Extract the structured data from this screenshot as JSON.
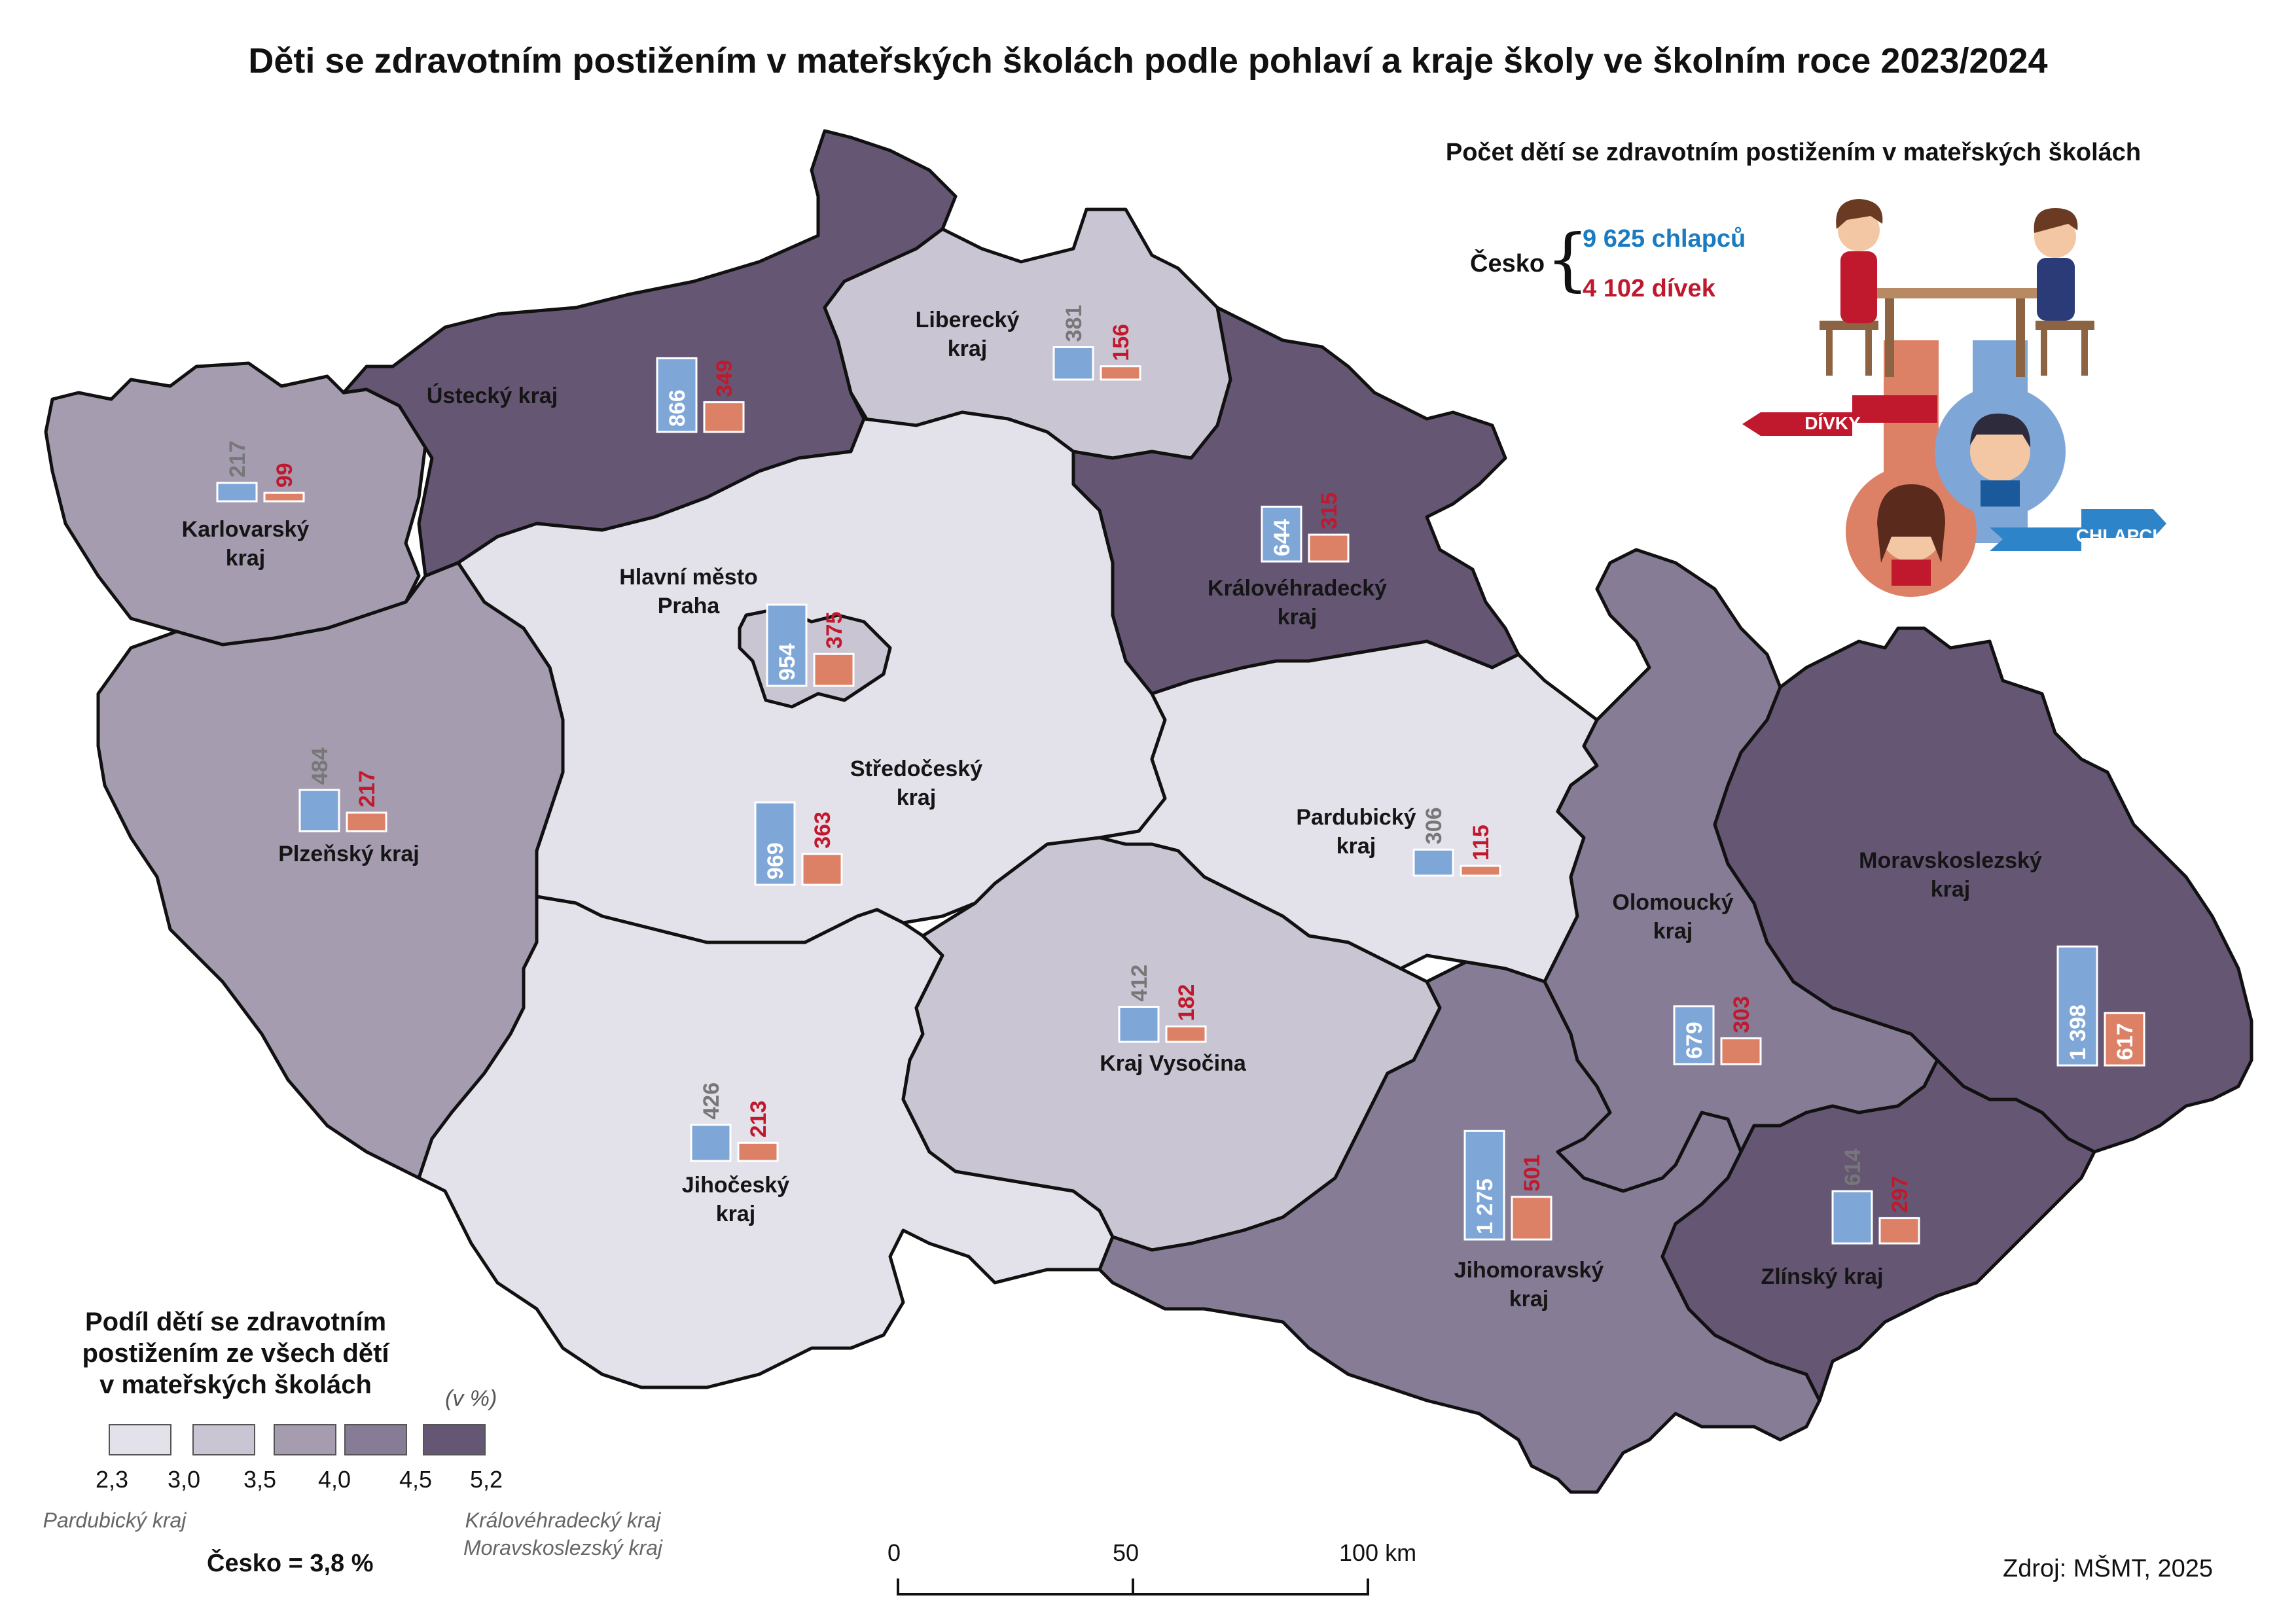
{
  "title": "Děti se zdravotním postižením v mateřských školách podle pohlaví a kraje školy ve školním roce 2023/2024",
  "info": {
    "title": "Počet dětí se zdravotním postižením v mateřských školách",
    "country": "Česko",
    "boys": "9 625 chlapců",
    "girls": "4 102 dívek",
    "girls_ribbon": "DÍVKY",
    "boys_ribbon": "CHLAPCI"
  },
  "colors": {
    "c1": "#e3e1ea",
    "c2": "#cac5d3",
    "c3": "#a59cb0",
    "c4": "#877c96",
    "c5": "#655774",
    "boys_bar": "#7ea7d8",
    "girls_bar": "#dc8066",
    "boys_text": "#1a7bc1",
    "girls_text": "#c0182c"
  },
  "regions": [
    {
      "name_line1": "Karlovarský",
      "name_line2": "kraj",
      "boys": "217",
      "girls": "99",
      "class": 3
    },
    {
      "name_line1": "Ústecký kraj",
      "name_line2": "",
      "boys": "866",
      "girls": "349",
      "class": 5
    },
    {
      "name_line1": "Liberecký",
      "name_line2": "kraj",
      "boys": "381",
      "girls": "156",
      "class": 2
    },
    {
      "name_line1": "Královéhradecký",
      "name_line2": "kraj",
      "boys": "644",
      "girls": "315",
      "class": 5
    },
    {
      "name_line1": "Hlavní město",
      "name_line2": "Praha",
      "boys": "954",
      "girls": "375",
      "class": 2
    },
    {
      "name_line1": "Plzeňský kraj",
      "name_line2": "",
      "boys": "484",
      "girls": "217",
      "class": 3
    },
    {
      "name_line1": "Středočeský",
      "name_line2": "kraj",
      "boys": "969",
      "girls": "363",
      "class": 1
    },
    {
      "name_line1": "Pardubický",
      "name_line2": "kraj",
      "boys": "306",
      "girls": "115",
      "class": 1
    },
    {
      "name_line1": "Kraj Vysočina",
      "name_line2": "",
      "boys": "412",
      "girls": "182",
      "class": 2
    },
    {
      "name_line1": "Jihočeský",
      "name_line2": "kraj",
      "boys": "426",
      "girls": "213",
      "class": 1
    },
    {
      "name_line1": "Jihomoravský",
      "name_line2": "kraj",
      "boys": "1 275",
      "girls": "501",
      "class": 4
    },
    {
      "name_line1": "Olomoucký",
      "name_line2": "kraj",
      "boys": "679",
      "girls": "303",
      "class": 4
    },
    {
      "name_line1": "Moravskoslezský",
      "name_line2": "kraj",
      "boys": "1 398",
      "girls": "617",
      "class": 5
    },
    {
      "name_line1": "Zlínský kraj",
      "name_line2": "",
      "boys": "614",
      "girls": "297",
      "class": 5
    }
  ],
  "legend": {
    "title": "Podíl dětí se zdravotním postižením ze všech dětí v mateřských školách",
    "unit": "(v %)",
    "ticks": [
      "2,3",
      "3,0",
      "3,5",
      "4,0",
      "4,5",
      "5,2"
    ],
    "min_note": "Pardubický kraj",
    "max_note": "Královéhradecký kraj Moravskoslezský kraj",
    "total": "Česko = 3,8 %"
  },
  "scale": {
    "tick0": "0",
    "tick50": "50",
    "tick100": "100 km"
  },
  "source": "Zdroj: MŠMT, 2025"
}
